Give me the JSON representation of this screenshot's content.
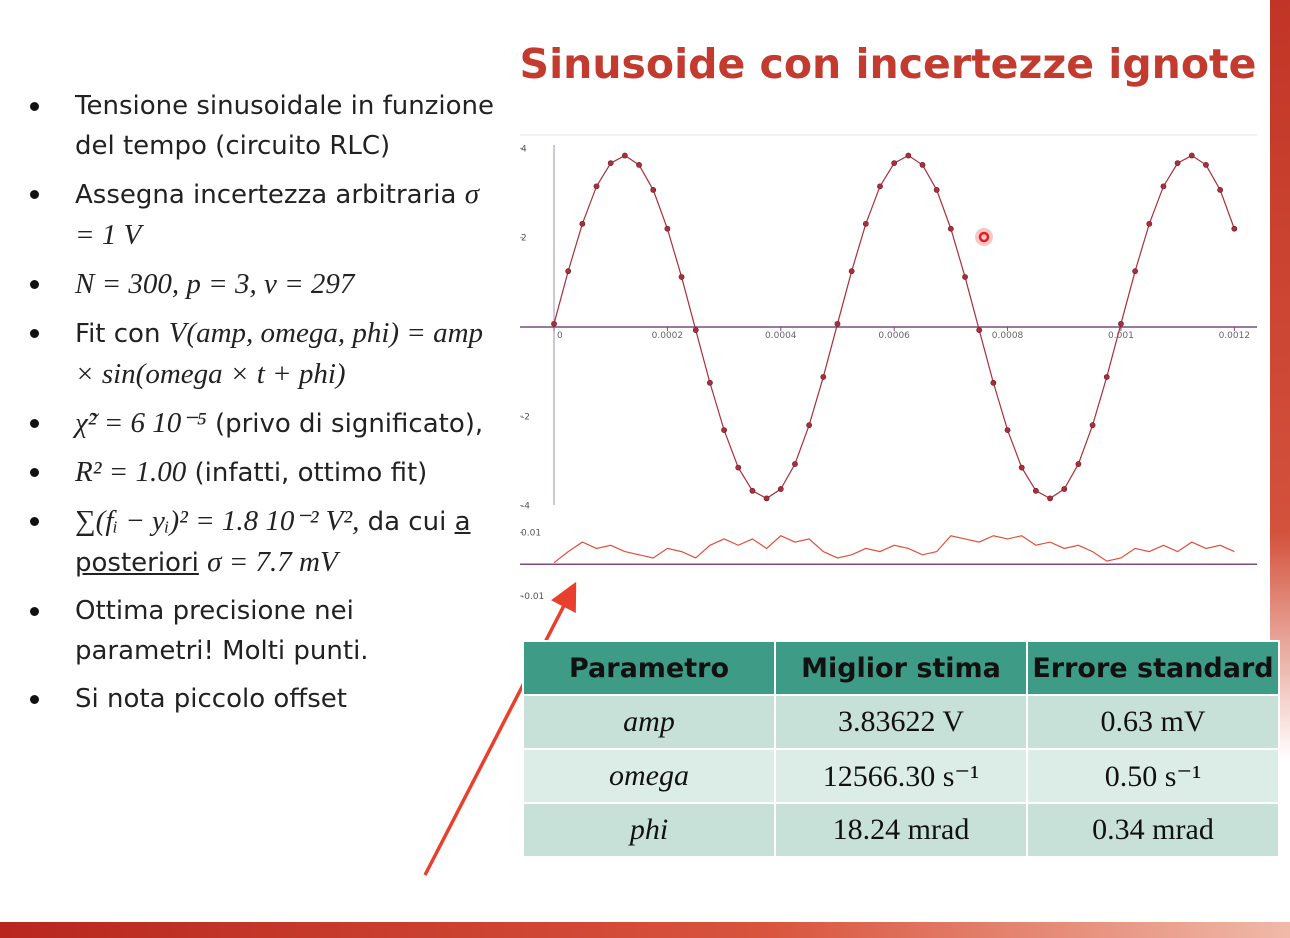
{
  "header": {
    "title": "Sinusoide con incertezze ignote"
  },
  "bullets": [
    [
      {
        "text": "Tensione sinusoidale in funzione del tempo (circuito RLC)"
      }
    ],
    [
      {
        "text": "Assegna incertezza arbitraria"
      },
      {
        "text": "σ = 1 V",
        "math": true
      }
    ],
    [
      {
        "text": "N = 300, p = 3, ν = 297",
        "math": true
      }
    ],
    [
      {
        "text": "Fit con"
      },
      {
        "text": "V(amp, omega, phi) = amp × sin(omega × t + phi)",
        "math": true
      }
    ],
    [
      {
        "text": "χ̃² = 6 10⁻⁵",
        "math": true
      },
      {
        "text": "(privo di significato),"
      }
    ],
    [
      {
        "text": "R² = 1.00",
        "math": true
      },
      {
        "text": "(infatti, ottimo fit)"
      }
    ],
    [
      {
        "text": "∑(fᵢ − yᵢ)² = 1.8 10⁻² V²,",
        "math": true
      },
      {
        "text": "da cui"
      },
      {
        "text": "a posteriori",
        "underline": true
      },
      {
        "text": "σ = 7.7 mV",
        "math": true
      }
    ],
    [
      {
        "text": "Ottima precisione nei parametri! Molti punti."
      }
    ],
    [
      {
        "text": "Si nota piccolo offset"
      }
    ]
  ],
  "chart_data": [
    {
      "type": "scatter",
      "x": [
        0,
        2.5e-05,
        5e-05,
        7.5e-05,
        0.0001,
        0.000125,
        0.00015,
        0.000175,
        0.0002,
        0.000225,
        0.00025,
        0.000275,
        0.0003,
        0.000325,
        0.00035,
        0.000375,
        0.0004,
        0.000425,
        0.00045,
        0.000475,
        0.0005,
        0.000525,
        0.00055,
        0.000575,
        0.0006,
        0.000625,
        0.00065,
        0.000675,
        0.0007,
        0.000725,
        0.00075,
        0.000775,
        0.0008,
        0.000825,
        0.00085,
        0.000875,
        0.0009,
        0.000925,
        0.00095,
        0.000975,
        0.001,
        0.001025,
        0.00105,
        0.001075,
        0.0011,
        0.001125,
        0.00115,
        0.001175,
        0.0012
      ],
      "values": [
        0.07,
        1.25,
        2.31,
        3.15,
        3.67,
        3.84,
        3.63,
        3.07,
        2.2,
        1.12,
        -0.07,
        -1.25,
        -2.31,
        -3.15,
        -3.67,
        -3.84,
        -3.63,
        -3.07,
        -2.2,
        -1.12,
        0.07,
        1.25,
        2.31,
        3.15,
        3.67,
        3.84,
        3.63,
        3.07,
        2.2,
        1.12,
        -0.07,
        -1.25,
        -2.31,
        -3.15,
        -3.67,
        -3.84,
        -3.63,
        -3.07,
        -2.2,
        -1.12,
        0.07,
        1.25,
        2.31,
        3.15,
        3.67,
        3.84,
        3.63,
        3.07,
        2.2
      ],
      "color": "#a8303c",
      "xlim": [
        -6e-05,
        0.00124
      ],
      "ylim": [
        -4.1,
        4.3
      ],
      "xticks": [
        0,
        0.0002,
        0.0004,
        0.0006,
        0.0008,
        0.001,
        0.0012
      ],
      "yticks": [
        4,
        2,
        -2,
        -4
      ]
    },
    {
      "type": "line",
      "x": [
        0,
        2.5e-05,
        5e-05,
        7.5e-05,
        0.0001,
        0.000125,
        0.00015,
        0.000175,
        0.0002,
        0.000225,
        0.00025,
        0.000275,
        0.0003,
        0.000325,
        0.00035,
        0.000375,
        0.0004,
        0.000425,
        0.00045,
        0.000475,
        0.0005,
        0.000525,
        0.00055,
        0.000575,
        0.0006,
        0.000625,
        0.00065,
        0.000675,
        0.0007,
        0.000725,
        0.00075,
        0.000775,
        0.0008,
        0.000825,
        0.00085,
        0.000875,
        0.0009,
        0.000925,
        0.00095,
        0.000975,
        0.001,
        0.001025,
        0.00105,
        0.001075,
        0.0011,
        0.001125,
        0.00115,
        0.001175,
        0.0012
      ],
      "values": [
        0.0005,
        0.004,
        0.007,
        0.005,
        0.006,
        0.004,
        0.003,
        0.002,
        0.005,
        0.004,
        0.002,
        0.006,
        0.008,
        0.006,
        0.008,
        0.005,
        0.009,
        0.007,
        0.008,
        0.004,
        0.002,
        0.003,
        0.005,
        0.004,
        0.006,
        0.005,
        0.003,
        0.004,
        0.009,
        0.008,
        0.007,
        0.009,
        0.008,
        0.009,
        0.006,
        0.007,
        0.005,
        0.006,
        0.004,
        0.001,
        0.002,
        0.005,
        0.004,
        0.006,
        0.004,
        0.007,
        0.005,
        0.006,
        0.004
      ],
      "color": "#e0503c",
      "xlim": [
        -6e-05,
        0.00124
      ],
      "ylim": [
        -0.01,
        0.0146
      ],
      "yticks": [
        0.01,
        -0.01
      ]
    }
  ],
  "table": {
    "header": [
      "Parametro",
      "Miglior stima",
      "Errore standard"
    ],
    "rows": [
      [
        "amp",
        "3.83622 V",
        "0.63 mV"
      ],
      [
        "omega",
        "12566.30 s⁻¹",
        "0.50 s⁻¹"
      ],
      [
        "phi",
        "18.24 mrad",
        "0.34 mrad"
      ]
    ]
  }
}
